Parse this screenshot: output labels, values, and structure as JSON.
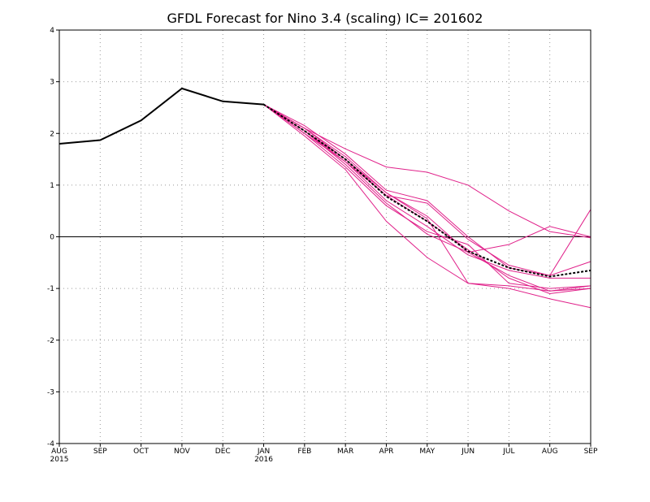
{
  "chart_data": {
    "type": "line",
    "title": "GFDL Forecast for Nino 3.4 (scaling) IC= 201602",
    "xlabel": "",
    "ylabel": "",
    "x_ticks": [
      "AUG",
      "SEP",
      "OCT",
      "NOV",
      "DEC",
      "JAN",
      "FEB",
      "MAR",
      "APR",
      "MAY",
      "JUN",
      "JUL",
      "AUG",
      "SEP"
    ],
    "x_sublabels": [
      "2015",
      "",
      "",
      "",
      "",
      "2016",
      "",
      "",
      "",
      "",
      "",
      "",
      "",
      ""
    ],
    "y_ticks": [
      -4,
      -3,
      -2,
      -1,
      0,
      1,
      2,
      3,
      4
    ],
    "ylim": [
      -4,
      4
    ],
    "grid": true,
    "colors": {
      "observed": "#000000",
      "members": "#e0218a",
      "mean": "#000000",
      "zero_line": "#000000",
      "grid": "#999999"
    },
    "observed": {
      "x_index": [
        0,
        1,
        2,
        3,
        4,
        5
      ],
      "values": [
        1.8,
        1.87,
        2.25,
        2.87,
        2.62,
        2.56
      ]
    },
    "members": [
      {
        "x_index": [
          5,
          6,
          7,
          8,
          9,
          10,
          11,
          12,
          13
        ],
        "values": [
          2.56,
          2.1,
          1.7,
          1.35,
          1.25,
          1.0,
          0.5,
          0.1,
          -0.02
        ]
      },
      {
        "x_index": [
          5,
          6,
          7,
          8,
          9,
          10,
          11,
          12,
          13
        ],
        "values": [
          2.56,
          2.15,
          1.6,
          0.9,
          0.7,
          0.0,
          -0.6,
          -0.75,
          0.53
        ]
      },
      {
        "x_index": [
          5,
          6,
          7,
          8,
          9,
          10,
          11,
          12,
          13
        ],
        "values": [
          2.56,
          2.05,
          1.5,
          0.8,
          0.65,
          -0.05,
          -0.55,
          -0.75,
          -0.48
        ]
      },
      {
        "x_index": [
          5,
          6,
          7,
          8,
          9,
          10,
          11,
          12,
          13
        ],
        "values": [
          2.56,
          2.1,
          1.55,
          0.85,
          0.4,
          -0.3,
          -0.15,
          0.2,
          0.0
        ]
      },
      {
        "x_index": [
          5,
          6,
          7,
          8,
          9,
          10,
          11,
          12,
          13
        ],
        "values": [
          2.56,
          2.0,
          1.45,
          0.7,
          0.2,
          -0.35,
          -0.65,
          -0.8,
          -0.8
        ]
      },
      {
        "x_index": [
          5,
          6,
          7,
          8,
          9,
          10,
          11,
          12,
          13
        ],
        "values": [
          2.56,
          2.05,
          1.4,
          0.65,
          0.05,
          -0.3,
          -0.75,
          -1.05,
          -1.0
        ]
      },
      {
        "x_index": [
          5,
          6,
          7,
          8,
          9,
          10,
          11,
          12,
          13
        ],
        "values": [
          2.56,
          2.0,
          1.35,
          0.6,
          0.1,
          -0.15,
          -0.9,
          -1.0,
          -0.95
        ]
      },
      {
        "x_index": [
          5,
          6,
          7,
          8,
          9,
          10,
          11,
          12,
          13
        ],
        "values": [
          2.56,
          1.95,
          1.3,
          0.3,
          -0.4,
          -0.9,
          -0.95,
          -1.05,
          -0.95
        ]
      },
      {
        "x_index": [
          5,
          6,
          7,
          8,
          9,
          10,
          11,
          12,
          13
        ],
        "values": [
          2.56,
          2.1,
          1.5,
          0.85,
          0.35,
          -0.9,
          -1.0,
          -1.2,
          -1.37
        ]
      },
      {
        "x_index": [
          5,
          6,
          7,
          8,
          9,
          10,
          11,
          12,
          13
        ],
        "values": [
          2.56,
          2.05,
          1.45,
          0.8,
          0.3,
          -0.25,
          -0.8,
          -1.1,
          -1.0
        ]
      }
    ],
    "mean": {
      "x_index": [
        5,
        6,
        7,
        8,
        9,
        10,
        11,
        12,
        13
      ],
      "values": [
        2.56,
        2.05,
        1.5,
        0.78,
        0.3,
        -0.28,
        -0.6,
        -0.77,
        -0.65
      ]
    }
  }
}
